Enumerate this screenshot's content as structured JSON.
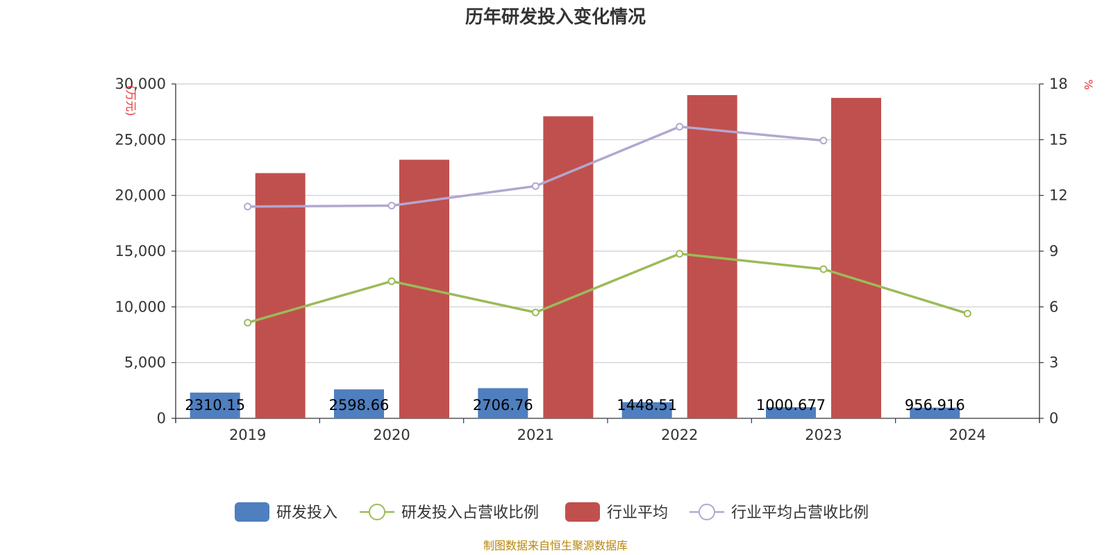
{
  "title": "历年研发投入变化情况",
  "source": "制图数据来自恒生聚源数据库",
  "chart_data": {
    "type": "bar",
    "categories": [
      "2019",
      "2020",
      "2021",
      "2022",
      "2023",
      "2024"
    ],
    "y_left": {
      "unit": "(万元)",
      "ylim": [
        0,
        30000
      ],
      "ticks": [
        "0",
        "5,000",
        "10,000",
        "15,000",
        "20,000",
        "25,000",
        "30,000"
      ]
    },
    "y_right": {
      "unit": "%",
      "ylim": [
        0,
        18
      ],
      "ticks": [
        "0",
        "3",
        "6",
        "9",
        "12",
        "15",
        "18"
      ]
    },
    "grid": true,
    "legend_position": "bottom-center",
    "series": [
      {
        "name": "研发投入",
        "kind": "bar",
        "axis": "left",
        "color": "#4f7fbf",
        "values": [
          2310.15,
          2598.66,
          2706.76,
          1448.51,
          1000.677,
          956.916
        ],
        "labels": [
          "2310.15",
          "2598.66",
          "2706.76",
          "1448.51",
          "1000.677",
          "956.916"
        ]
      },
      {
        "name": "研发投入占营收比例",
        "kind": "line",
        "axis": "right",
        "color": "#9bbb59",
        "values": [
          5.15,
          7.38,
          5.7,
          8.86,
          8.03,
          5.64
        ]
      },
      {
        "name": "行业平均",
        "kind": "bar",
        "axis": "left",
        "color": "#c0504d",
        "values": [
          22000,
          23200,
          27100,
          29000,
          28750,
          null
        ]
      },
      {
        "name": "行业平均占营收比例",
        "kind": "line",
        "axis": "right",
        "color": "#b3a7cf",
        "values": [
          11.4,
          11.45,
          12.5,
          15.7,
          14.95,
          null
        ]
      }
    ]
  }
}
